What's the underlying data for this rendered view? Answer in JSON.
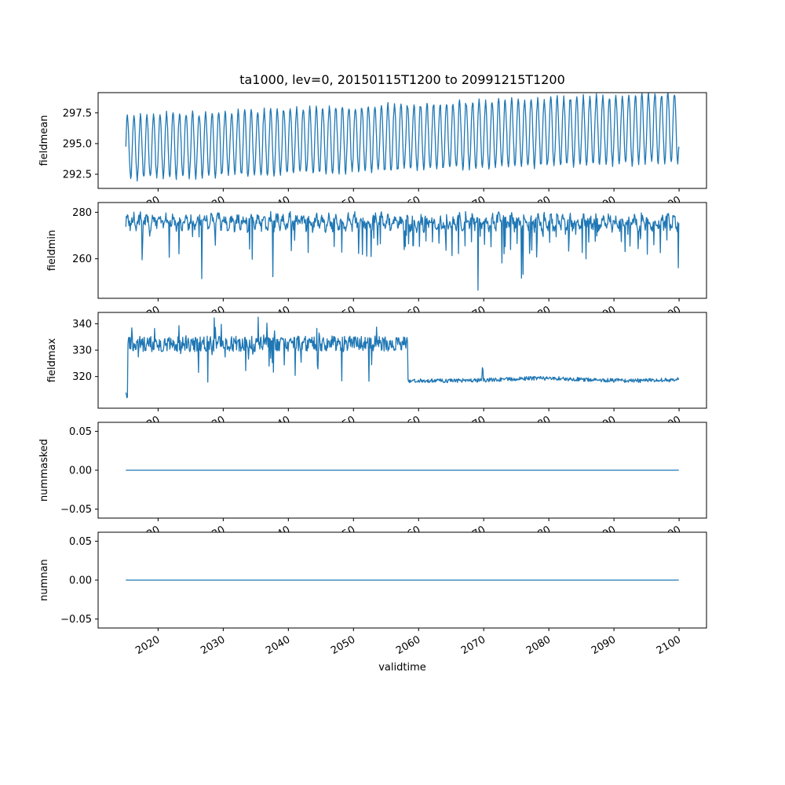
{
  "figure": {
    "title": "ta1000, lev=0, 20150115T1200 to 20991215T1200",
    "xlabel": "validtime",
    "background": "#ffffff",
    "line_color": "#1f77b4"
  },
  "x_axis": {
    "label": "validtime",
    "lim": [
      2010.79,
      2104.21
    ],
    "data_start": 2015.04,
    "data_end": 2099.96,
    "ticks": [
      {
        "v": 2020,
        "label": "2020"
      },
      {
        "v": 2030,
        "label": "2030"
      },
      {
        "v": 2040,
        "label": "2040"
      },
      {
        "v": 2050,
        "label": "2050"
      },
      {
        "v": 2060,
        "label": "2060"
      },
      {
        "v": 2070,
        "label": "2070"
      },
      {
        "v": 2080,
        "label": "2080"
      },
      {
        "v": 2090,
        "label": "2090"
      },
      {
        "v": 2100,
        "label": "2100"
      }
    ]
  },
  "chart_data": [
    {
      "type": "line",
      "title": "ta1000, lev=0, 20150115T1200 to 20991215T1200",
      "ylabel": "fieldmean",
      "xlabel": "validtime",
      "ylim": [
        291.35,
        299.15
      ],
      "yticks": [
        {
          "v": 292.5,
          "label": "292.5"
        },
        {
          "v": 295.0,
          "label": "295.0"
        },
        {
          "v": 297.5,
          "label": "297.5"
        }
      ],
      "description": "Annual oscillation roughly 292 to 297.5 in 2015 rising slowly to about 293.5 to 299 by 2100; mean trend ~294.7 -> ~296.3",
      "series": [
        {
          "name": "fieldmean",
          "color": "#1f77b4",
          "pattern": {
            "kind": "seasonal",
            "t0": 2015.04,
            "t1": 2099.96,
            "points_per_year": 12,
            "mean0": 294.7,
            "mean1": 296.3,
            "amp0": 2.55,
            "amp1": 2.8,
            "noise": 0.25,
            "seed": 42
          }
        }
      ]
    },
    {
      "type": "line",
      "title": "",
      "ylabel": "fieldmin",
      "xlabel": "validtime",
      "ylim": [
        243.0,
        284.2
      ],
      "yticks": [
        {
          "v": 260,
          "label": "260"
        },
        {
          "v": 280,
          "label": "280"
        }
      ],
      "description": "Noisy series mostly between 265 and 281 with intermittent downward spikes to 250-258; regular annual deep dips after ~2060; deepest spike ~246 near 2069",
      "series": [
        {
          "name": "fieldmin",
          "color": "#1f77b4",
          "pattern": {
            "kind": "fieldmin",
            "t0": 2015.04,
            "t1": 2099.96,
            "points_per_year": 12,
            "base": 275.8,
            "season_amp": 2.0,
            "noise": 2.6,
            "spike_prob": 0.06,
            "spike_max": 14,
            "deep_spike_prob": 0.01,
            "deep_extra": 10,
            "deepest_t": 2069.1,
            "deepest_v": 246.5,
            "cap": 281.2,
            "seed": 7
          }
        }
      ]
    },
    {
      "type": "line",
      "title": "",
      "ylabel": "fieldmax",
      "xlabel": "validtime",
      "ylim": [
        308.0,
        344.3
      ],
      "yticks": [
        {
          "v": 320,
          "label": "320"
        },
        {
          "v": 330,
          "label": "330"
        },
        {
          "v": 340,
          "label": "340"
        }
      ],
      "description": "Noisy regime around 329-336 (extremes 317 to 342, initial dip to ~311) until ~2058, then abrupt drop to quiet regime ~317.5-321 with brief spike to ~324 near 2070 and gentle bump around 2079",
      "series": [
        {
          "name": "fieldmax",
          "color": "#1f77b4",
          "pattern": {
            "kind": "fieldmax",
            "t0": 2015.04,
            "t1": 2099.96,
            "points_per_year": 12,
            "regime_change": 2058.3,
            "base1": 332.4,
            "noise1": 6.0,
            "upspike_prob": 0.045,
            "downspike_prob": 0.03,
            "start_dip_end": 2015.3,
            "start_dip_v": 311.0,
            "dips": [
              2027.6,
              2048.2,
              2052.4
            ],
            "dip_v": 317.5,
            "base2": 318.4,
            "noise2": 1.5,
            "post_spike_t": 2069.8,
            "seed": 1234
          }
        }
      ]
    },
    {
      "type": "line",
      "title": "",
      "ylabel": "nummasked",
      "xlabel": "validtime",
      "ylim": [
        -0.0615,
        0.0615
      ],
      "yticks": [
        {
          "v": -0.05,
          "label": "−0.05"
        },
        {
          "v": 0.0,
          "label": "0.00"
        },
        {
          "v": 0.05,
          "label": "0.05"
        }
      ],
      "description": "Constant 0 for the entire period",
      "series": [
        {
          "name": "nummasked",
          "color": "#1f77b4",
          "pattern": {
            "kind": "flat",
            "t0": 2015.04,
            "t1": 2099.96,
            "points_per_year": 1,
            "value": 0,
            "seed": 1
          }
        }
      ]
    },
    {
      "type": "line",
      "title": "",
      "ylabel": "numnan",
      "xlabel": "validtime",
      "ylim": [
        -0.0615,
        0.0615
      ],
      "yticks": [
        {
          "v": -0.05,
          "label": "−0.05"
        },
        {
          "v": 0.0,
          "label": "0.00"
        },
        {
          "v": 0.05,
          "label": "0.05"
        }
      ],
      "description": "Constant 0 for the entire period",
      "series": [
        {
          "name": "numnan",
          "color": "#1f77b4",
          "pattern": {
            "kind": "flat",
            "t0": 2015.04,
            "t1": 2099.96,
            "points_per_year": 1,
            "value": 0,
            "seed": 2
          }
        }
      ]
    }
  ]
}
